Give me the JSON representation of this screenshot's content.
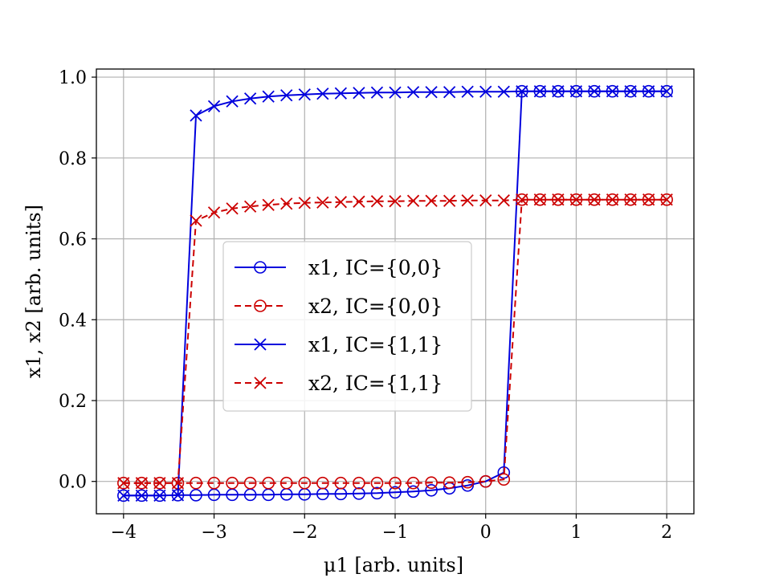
{
  "chart_data": {
    "type": "line",
    "title": "",
    "xlabel": "μ1 [arb. units]",
    "ylabel": "x1, x2 [arb. units]",
    "xlim": [
      -4.3,
      2.3
    ],
    "ylim": [
      -0.08,
      1.02
    ],
    "grid": true,
    "legend_position": "center-left",
    "x_ticks": [
      -4,
      -3,
      -2,
      -1,
      0,
      1,
      2
    ],
    "x_tick_labels": [
      "−4",
      "−3",
      "−2",
      "−1",
      "0",
      "1",
      "2"
    ],
    "y_ticks": [
      0.0,
      0.2,
      0.4,
      0.6,
      0.8,
      1.0
    ],
    "y_tick_labels": [
      "0.0",
      "0.2",
      "0.4",
      "0.6",
      "0.8",
      "1.0"
    ],
    "x": [
      -4.0,
      -3.8,
      -3.6,
      -3.4,
      -3.2,
      -3.0,
      -2.8,
      -2.6,
      -2.4,
      -2.2,
      -2.0,
      -1.8,
      -1.6,
      -1.4,
      -1.2,
      -1.0,
      -0.8,
      -0.6,
      -0.4,
      -0.2,
      0.0,
      0.2,
      0.4,
      0.6,
      0.8,
      1.0,
      1.2,
      1.4,
      1.6,
      1.8,
      2.0
    ],
    "series": [
      {
        "name": "x1, IC={0,0}",
        "color": "#0000dd",
        "dash": "solid",
        "marker": "circle",
        "values": [
          -0.035,
          -0.035,
          -0.035,
          -0.034,
          -0.034,
          -0.033,
          -0.033,
          -0.033,
          -0.033,
          -0.032,
          -0.032,
          -0.031,
          -0.031,
          -0.03,
          -0.029,
          -0.027,
          -0.025,
          -0.022,
          -0.017,
          -0.01,
          0.0,
          0.022,
          0.965,
          0.965,
          0.965,
          0.965,
          0.965,
          0.965,
          0.965,
          0.965,
          0.965
        ]
      },
      {
        "name": "x2, IC={0,0}",
        "color": "#cc0000",
        "dash": "dashed",
        "marker": "circle",
        "values": [
          -0.004,
          -0.004,
          -0.004,
          -0.004,
          -0.004,
          -0.004,
          -0.004,
          -0.004,
          -0.004,
          -0.004,
          -0.004,
          -0.004,
          -0.004,
          -0.004,
          -0.004,
          -0.004,
          -0.004,
          -0.003,
          -0.003,
          -0.002,
          0.0,
          0.005,
          0.697,
          0.697,
          0.697,
          0.697,
          0.697,
          0.697,
          0.697,
          0.697,
          0.697
        ]
      },
      {
        "name": "x1, IC={1,1}",
        "color": "#0000dd",
        "dash": "solid",
        "marker": "x",
        "values": [
          -0.035,
          -0.035,
          -0.035,
          -0.034,
          0.905,
          0.928,
          0.94,
          0.947,
          0.952,
          0.955,
          0.957,
          0.959,
          0.96,
          0.961,
          0.962,
          0.962,
          0.963,
          0.963,
          0.963,
          0.964,
          0.964,
          0.964,
          0.965,
          0.965,
          0.965,
          0.965,
          0.965,
          0.965,
          0.965,
          0.965,
          0.965
        ]
      },
      {
        "name": "x2, IC={1,1}",
        "color": "#cc0000",
        "dash": "dashed",
        "marker": "x",
        "values": [
          -0.004,
          -0.004,
          -0.004,
          -0.004,
          0.645,
          0.665,
          0.675,
          0.68,
          0.684,
          0.687,
          0.689,
          0.69,
          0.691,
          0.692,
          0.693,
          0.693,
          0.694,
          0.694,
          0.694,
          0.695,
          0.695,
          0.695,
          0.697,
          0.697,
          0.697,
          0.697,
          0.697,
          0.697,
          0.697,
          0.697,
          0.697
        ]
      }
    ]
  }
}
